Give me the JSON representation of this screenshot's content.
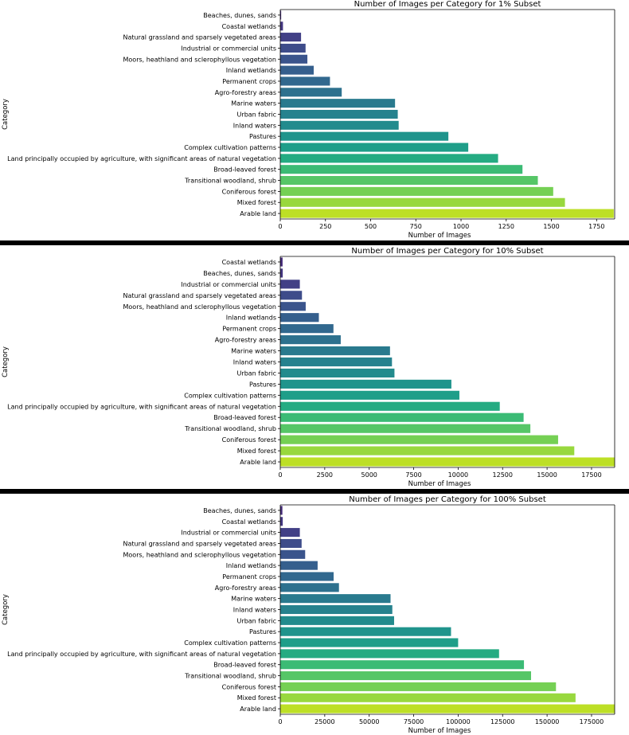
{
  "palette": [
    "#472d7b",
    "#453882",
    "#424086",
    "#3e4c8a",
    "#3a548c",
    "#355f8d",
    "#31688e",
    "#2d718e",
    "#297a8e",
    "#26828e",
    "#228b8d",
    "#1f948c",
    "#1f9e89",
    "#25ab82",
    "#3bbb75",
    "#56c667",
    "#75d054",
    "#98d83e",
    "#bddf26"
  ],
  "chart_data": [
    {
      "type": "bar",
      "orientation": "horizontal",
      "title": "Number of Images per Category for 1% Subset",
      "xlabel": "Number of Images",
      "ylabel": "Category",
      "xlim": [
        0,
        1850
      ],
      "xticks": [
        0,
        250,
        500,
        750,
        1000,
        1250,
        1500,
        1750
      ],
      "categories": [
        "Beaches, dunes, sands",
        "Coastal wetlands",
        "Natural grassland and sparsely vegetated areas",
        "Industrial or commercial units",
        "Moors, heathland and sclerophyllous vegetation",
        "Inland wetlands",
        "Permanent crops",
        "Agro-forestry areas",
        "Marine waters",
        "Urban fabric",
        "Inland waters",
        "Pastures",
        "Complex cultivation patterns",
        "Land principally occupied by agriculture, with significant areas of natural vegetation",
        "Broad-leaved forest",
        "Transitional woodland, shrub",
        "Coniferous forest",
        "Mixed forest",
        "Arable land"
      ],
      "values": [
        5,
        15,
        115,
        140,
        150,
        185,
        275,
        340,
        635,
        650,
        655,
        930,
        1040,
        1205,
        1340,
        1425,
        1510,
        1575,
        1845
      ]
    },
    {
      "type": "bar",
      "orientation": "horizontal",
      "title": "Number of Images per Category for 10% Subset",
      "xlabel": "Number of Images",
      "ylabel": "Category",
      "xlim": [
        0,
        18800
      ],
      "xticks": [
        0,
        2500,
        5000,
        7500,
        10000,
        12500,
        15000,
        17500
      ],
      "categories": [
        "Coastal wetlands",
        "Beaches, dunes, sands",
        "Industrial or commercial units",
        "Natural grassland and sparsely vegetated areas",
        "Moors, heathland and sclerophyllous vegetation",
        "Inland wetlands",
        "Permanent crops",
        "Agro-forestry areas",
        "Marine waters",
        "Inland waters",
        "Urban fabric",
        "Pastures",
        "Complex cultivation patterns",
        "Land principally occupied by agriculture, with significant areas of natural vegetation",
        "Broad-leaved forest",
        "Transitional woodland, shrub",
        "Coniferous forest",
        "Mixed forest",
        "Arable land"
      ],
      "values": [
        130,
        140,
        1100,
        1220,
        1430,
        2170,
        2990,
        3400,
        6170,
        6280,
        6420,
        9620,
        10070,
        12340,
        13680,
        14060,
        15620,
        16530,
        18800
      ]
    },
    {
      "type": "bar",
      "orientation": "horizontal",
      "title": "Number of Images per Category for 100% Subset",
      "xlabel": "Number of Images",
      "ylabel": "Category",
      "xlim": [
        0,
        188000
      ],
      "xticks": [
        0,
        25000,
        50000,
        75000,
        100000,
        125000,
        150000,
        175000
      ],
      "categories": [
        "Beaches, dunes, sands",
        "Coastal wetlands",
        "Industrial or commercial units",
        "Natural grassland and sparsely vegetated areas",
        "Moors, heathland and sclerophyllous vegetation",
        "Inland wetlands",
        "Permanent crops",
        "Agro-forestry areas",
        "Marine waters",
        "Inland waters",
        "Urban fabric",
        "Pastures",
        "Complex cultivation patterns",
        "Land principally occupied by agriculture, with significant areas of natural vegetation",
        "Broad-leaved forest",
        "Transitional woodland, shrub",
        "Coniferous forest",
        "Mixed forest",
        "Arable land"
      ],
      "values": [
        1200,
        1400,
        11000,
        12000,
        14000,
        21000,
        30000,
        33000,
        62000,
        63000,
        64000,
        96000,
        100000,
        123000,
        137000,
        141000,
        155000,
        166000,
        188000
      ]
    }
  ]
}
